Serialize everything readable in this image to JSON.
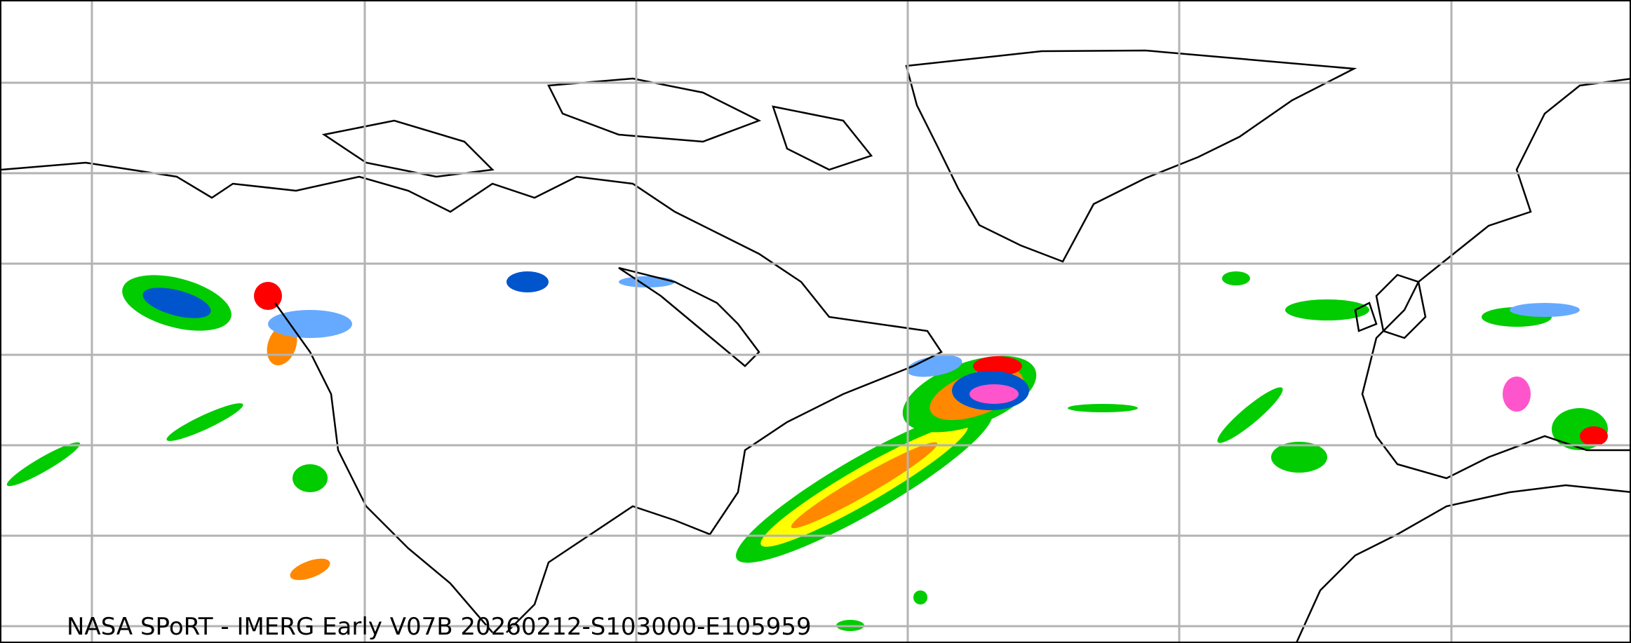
{
  "caption": "NASA SPoRT - IMERG Early V07B 20260212-S103000-E105959",
  "colors": {
    "gridline": "#b3b3b3",
    "coastline": "#000000",
    "light_precip": "#00cc00",
    "moderate_precip": "#ffff00",
    "heavy_precip": "#ff8800",
    "very_heavy_precip": "#ff0000",
    "snow_light": "#66aaff",
    "snow_heavy": "#0055cc",
    "mixed": "#ff55cc"
  }
}
